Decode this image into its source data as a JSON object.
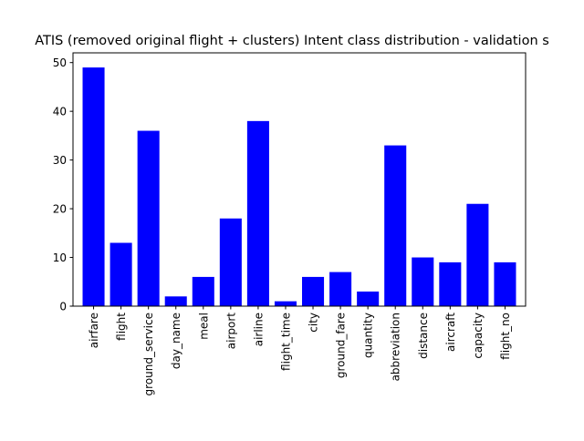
{
  "chart_data": {
    "type": "bar",
    "title": "ATIS (removed original flight + clusters) Intent class distribution - validation s",
    "xlabel": "",
    "ylabel": "",
    "categories": [
      "airfare",
      "flight",
      "ground_service",
      "day_name",
      "meal",
      "airport",
      "airline",
      "flight_time",
      "city",
      "ground_fare",
      "quantity",
      "abbreviation",
      "distance",
      "aircraft",
      "capacity",
      "flight_no"
    ],
    "values": [
      49,
      13,
      36,
      2,
      6,
      18,
      38,
      1,
      6,
      7,
      3,
      33,
      10,
      9,
      21,
      9
    ],
    "ylim": [
      0,
      52
    ],
    "yticks": [
      0,
      10,
      20,
      30,
      40,
      50
    ],
    "bar_color": "#0000ff",
    "grid": false,
    "legend": false
  }
}
